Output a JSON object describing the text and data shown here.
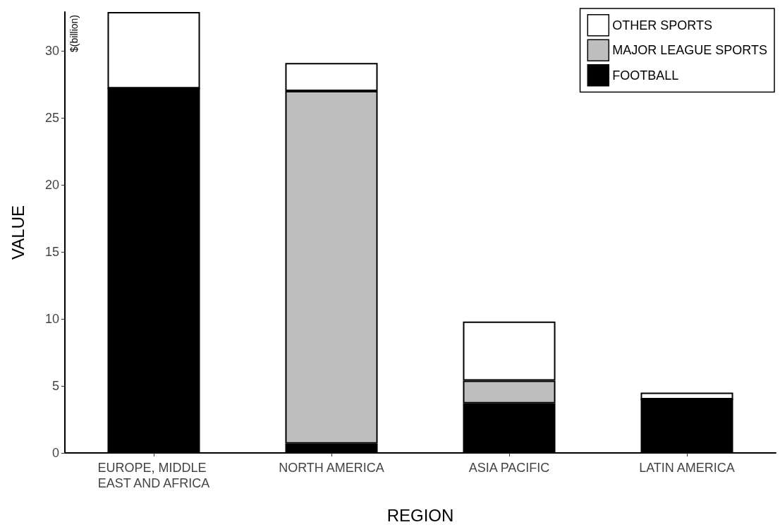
{
  "chart_data": {
    "type": "bar",
    "stacked": true,
    "xlabel": "REGION",
    "ylabel": "VALUE",
    "annotations": [
      "$(billion)"
    ],
    "categories": [
      "EUROPE, MIDDLE EAST AND AFRICA",
      "NORTH AMERICA",
      "ASIA PACIFIC",
      "LATIN AMERICA"
    ],
    "series": [
      {
        "name": "FOOTBALL",
        "color": "#000000",
        "values": [
          27.2,
          0.7,
          3.7,
          4.0
        ]
      },
      {
        "name": "MAJOR LEAGUE SPORTS",
        "color": "#bebebe",
        "values": [
          0,
          26.3,
          1.7,
          0
        ]
      },
      {
        "name": "OTHER SPORTS",
        "color": "#ffffff",
        "values": [
          5.7,
          2.1,
          4.4,
          0.5
        ]
      }
    ],
    "ylim": [
      0,
      32.9
    ],
    "yticks": [
      0,
      5,
      10,
      15,
      20,
      25,
      30
    ],
    "grid": false,
    "legend": "top right"
  }
}
